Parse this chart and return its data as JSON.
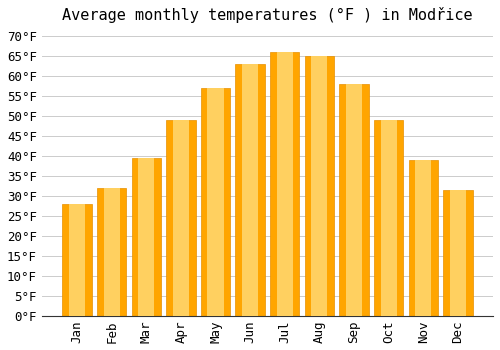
{
  "title": "Average monthly temperatures (°F ) in Modřice",
  "months": [
    "Jan",
    "Feb",
    "Mar",
    "Apr",
    "May",
    "Jun",
    "Jul",
    "Aug",
    "Sep",
    "Oct",
    "Nov",
    "Dec"
  ],
  "values": [
    28.0,
    32.0,
    39.5,
    49.0,
    57.0,
    63.0,
    66.0,
    65.0,
    58.0,
    49.0,
    39.0,
    31.5
  ],
  "bar_color": "#FFA500",
  "bar_color_light": "#FFD060",
  "bar_edge_color": "#E89000",
  "background_color": "#FFFFFF",
  "grid_color": "#CCCCCC",
  "yticks": [
    0,
    5,
    10,
    15,
    20,
    25,
    30,
    35,
    40,
    45,
    50,
    55,
    60,
    65,
    70
  ],
  "ylim": [
    0,
    72
  ],
  "title_fontsize": 11,
  "tick_fontsize": 9,
  "font_family": "monospace"
}
